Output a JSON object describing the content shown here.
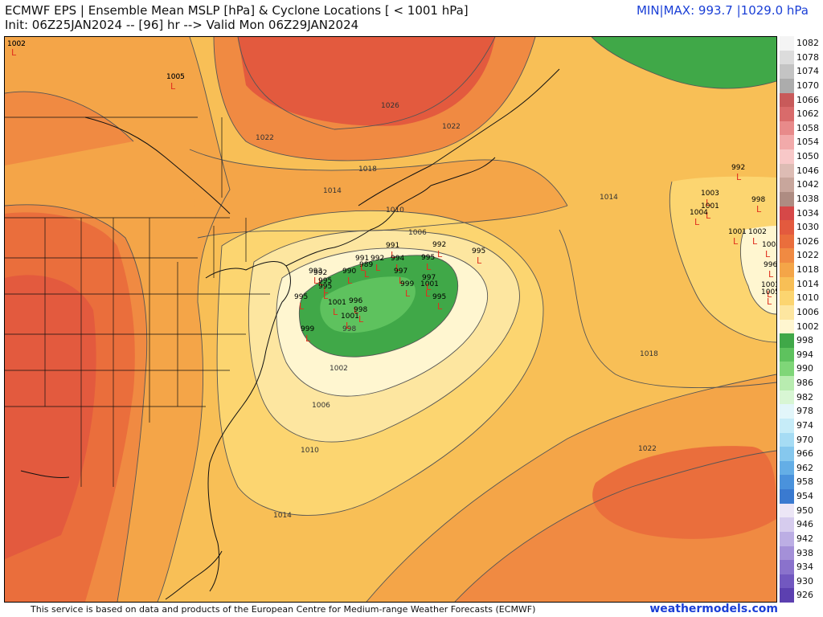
{
  "header": {
    "line1": "ECMWF EPS | Ensemble Mean MSLP [hPa] & Cyclone Locations [ < 1001 hPa]",
    "line2": "Init: 06Z25JAN2024 -- [96] hr --> Valid Mon 06Z29JAN2024",
    "minmax": "MIN|MAX: 993.7 |1029.0 hPa"
  },
  "footer": {
    "text": "This service is based on data and products of the European Centre for Medium-range Weather Forecasts (ECMWF)",
    "brand": "weathermodels.com"
  },
  "colorbar": {
    "levels": [
      {
        "label": "1082",
        "color": "#f4f4f4"
      },
      {
        "label": "1078",
        "color": "#dcdcdc"
      },
      {
        "label": "1074",
        "color": "#c4c4c4"
      },
      {
        "label": "1070",
        "color": "#acacac"
      },
      {
        "label": "1066",
        "color": "#c85a5a"
      },
      {
        "label": "1062",
        "color": "#d96b6b"
      },
      {
        "label": "1058",
        "color": "#e88a8a"
      },
      {
        "label": "1054",
        "color": "#f2aaaa"
      },
      {
        "label": "1050",
        "color": "#f8c8c8"
      },
      {
        "label": "1046",
        "color": "#ddbcb4"
      },
      {
        "label": "1042",
        "color": "#c8a69c"
      },
      {
        "label": "1038",
        "color": "#ae8c82"
      },
      {
        "label": "1034",
        "color": "#d64848"
      },
      {
        "label": "1030",
        "color": "#e35a3e"
      },
      {
        "label": "1026",
        "color": "#ea6e3c"
      },
      {
        "label": "1022",
        "color": "#f08a42"
      },
      {
        "label": "1018",
        "color": "#f4a548"
      },
      {
        "label": "1014",
        "color": "#f8bf56"
      },
      {
        "label": "1010",
        "color": "#fcd570"
      },
      {
        "label": "1006",
        "color": "#fde6a0"
      },
      {
        "label": "1002",
        "color": "#fff6d0"
      },
      {
        "label": "998",
        "color": "#40a848"
      },
      {
        "label": "994",
        "color": "#5ec25e"
      },
      {
        "label": "990",
        "color": "#7fd678"
      },
      {
        "label": "986",
        "color": "#b8ecb0"
      },
      {
        "label": "982",
        "color": "#d8f6d4"
      },
      {
        "label": "978",
        "color": "#e2f6fa"
      },
      {
        "label": "974",
        "color": "#c6ecf8"
      },
      {
        "label": "970",
        "color": "#a6dcf4"
      },
      {
        "label": "966",
        "color": "#86c8ee"
      },
      {
        "label": "962",
        "color": "#64aee6"
      },
      {
        "label": "958",
        "color": "#4a92dc"
      },
      {
        "label": "954",
        "color": "#3a7ad0"
      },
      {
        "label": "950",
        "color": "#ece6f6"
      },
      {
        "label": "946",
        "color": "#d6ccee"
      },
      {
        "label": "942",
        "color": "#bcaee4"
      },
      {
        "label": "938",
        "color": "#a490d8"
      },
      {
        "label": "934",
        "color": "#8a72cc"
      },
      {
        "label": "930",
        "color": "#7258c0"
      },
      {
        "label": "926",
        "color": "#5c40b0"
      }
    ]
  },
  "isobar_labels": [
    "1002",
    "1005",
    "1026",
    "1022",
    "1022",
    "1018",
    "1014",
    "1010",
    "1006",
    "1002",
    "998",
    "1014",
    "1018",
    "1022",
    "1006",
    "1010",
    "1014"
  ],
  "cyclones": [
    "1002",
    "1005",
    "992",
    "995",
    "995",
    "995",
    "1003",
    "1001",
    "1004",
    "992",
    "998",
    "1001",
    "1002",
    "1008",
    "996",
    "1003",
    "1005",
    "989",
    "991",
    "992",
    "992",
    "995",
    "990",
    "991",
    "994",
    "997",
    "999",
    "1001",
    "995",
    "997",
    "996",
    "998",
    "1001",
    "1001",
    "999",
    "993",
    "995"
  ]
}
